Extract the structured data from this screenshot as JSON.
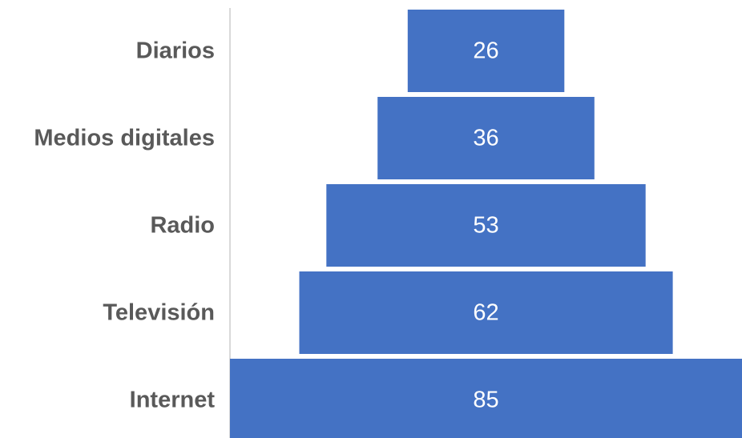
{
  "chart_data": {
    "type": "bar",
    "orientation": "horizontal-centered",
    "categories": [
      "Diarios",
      "Medios digitales",
      "Radio",
      "Televisión",
      "Internet"
    ],
    "values": [
      26,
      36,
      53,
      62,
      85
    ],
    "title": "",
    "xlabel": "",
    "ylabel": "",
    "grid": false,
    "legend": "none",
    "bar_color": "#4472C4",
    "label_color": "#ffffff",
    "category_color": "#595959",
    "axis_color": "#d9d9d9"
  }
}
